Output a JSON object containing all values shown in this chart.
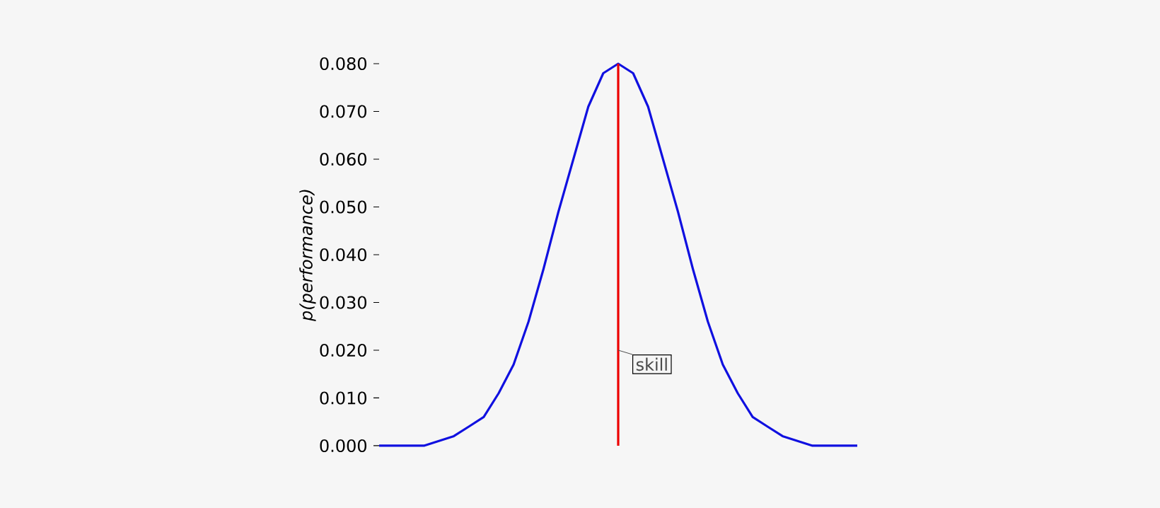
{
  "chart_data": {
    "type": "line",
    "ylabel": "p(performance)",
    "categories": [
      null,
      null,
      null,
      null,
      null,
      null,
      null,
      null,
      null,
      null,
      null,
      null,
      null,
      null,
      null,
      null,
      null,
      null,
      null,
      null,
      null,
      null,
      null,
      null,
      null,
      null,
      null,
      null,
      null,
      null,
      null,
      null,
      null
    ],
    "series": [
      {
        "color": "#1010e0",
        "values": [
          0,
          0,
          0,
          0,
          0.001,
          0.002,
          0.004,
          0.006,
          0.011,
          0.017,
          0.026,
          0.037,
          0.049,
          0.06,
          0.071,
          0.078,
          0.08,
          0.078,
          0.071,
          0.06,
          0.049,
          0.037,
          0.026,
          0.017,
          0.011,
          0.006,
          0.004,
          0.002,
          0.001,
          0,
          0,
          0,
          0
        ]
      }
    ],
    "ylim": [
      0,
      0.08
    ],
    "yticks": [
      {
        "value": 0,
        "label": "0.000"
      },
      {
        "value": 0.01,
        "label": "0.010"
      },
      {
        "value": 0.02,
        "label": "0.020"
      },
      {
        "value": 0.03,
        "label": "0.030"
      },
      {
        "value": 0.04,
        "label": "0.040"
      },
      {
        "value": 0.05,
        "label": "0.050"
      },
      {
        "value": 0.06,
        "label": "0.060"
      },
      {
        "value": 0.07,
        "label": "0.070"
      },
      {
        "value": 0.08,
        "label": "0.080"
      }
    ],
    "annotations": [
      "skill"
    ],
    "tick_labels": "y"
  }
}
